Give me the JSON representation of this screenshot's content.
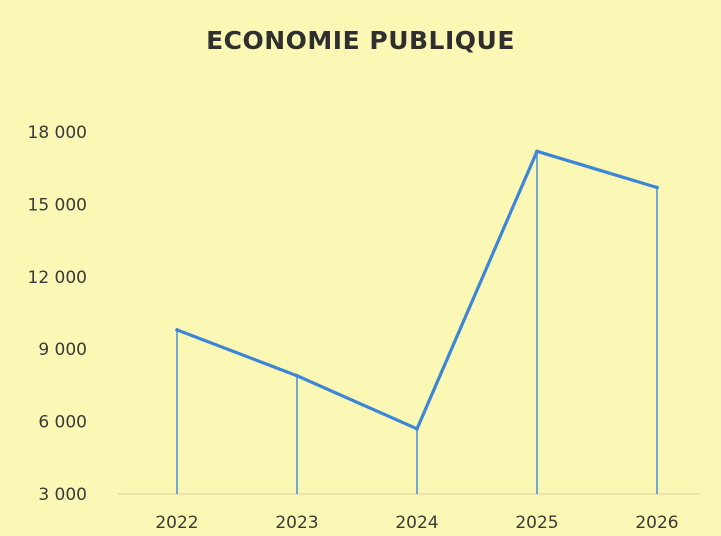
{
  "chart_data": {
    "type": "line",
    "title": "ECONOMIE PUBLIQUE",
    "xlabel": "",
    "ylabel": "",
    "x": [
      "2022",
      "2023",
      "2024",
      "2025",
      "2026"
    ],
    "series": [
      {
        "values": [
          9800,
          7900,
          5700,
          17200,
          15700
        ]
      }
    ],
    "ylim": [
      3000,
      18000
    ],
    "yticks": [
      3000,
      6000,
      9000,
      12000,
      15000,
      18000
    ],
    "ytick_labels": [
      "3 000",
      "6 000",
      "9 000",
      "12 000",
      "15 000",
      "18 000"
    ],
    "grid": false,
    "drop_lines": true,
    "line_color": "#3b86d6",
    "background_color": "#fbf7b4"
  }
}
